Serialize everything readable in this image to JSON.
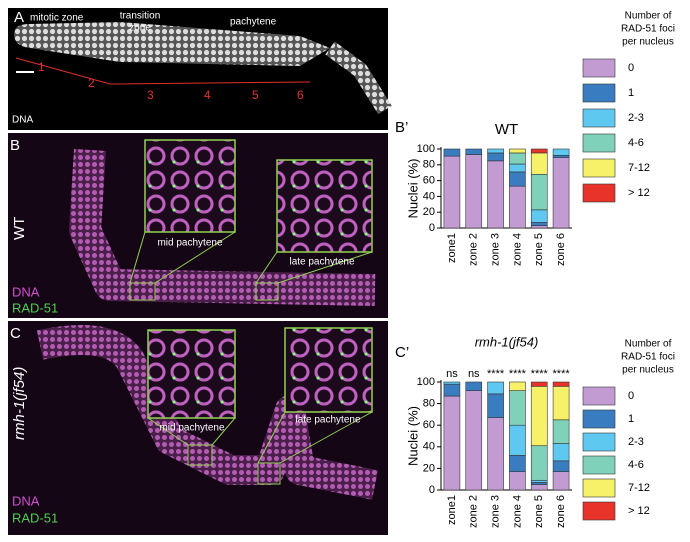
{
  "figure": {
    "panel_a": {
      "label": "A",
      "zones": [
        "mitotic zone",
        "transition",
        "zone",
        "pachytene"
      ],
      "stain": "DNA",
      "numbers": [
        "1",
        "2",
        "3",
        "4",
        "5",
        "6"
      ]
    },
    "panel_b": {
      "label": "B",
      "genotype": "WT",
      "stain1": "DNA",
      "stain2": "RAD-51",
      "inset1": "mid pachytene",
      "inset2": "late pachytene"
    },
    "panel_c": {
      "label": "C",
      "genotype": "rmh-1(jf54)",
      "stain1": "DNA",
      "stain2": "RAD-51",
      "inset1": "mid pachytene",
      "inset2": "late pachytene"
    }
  },
  "chart_data": [
    {
      "type": "bar",
      "stacked": true,
      "panel_label": "B’",
      "title": "WT",
      "y_label": "Nuclei (%)",
      "categories": [
        "zone1",
        "zone 2",
        "zone 3",
        "zone 4",
        "zone 5",
        "zone 6"
      ],
      "ylim": [
        0,
        100
      ],
      "yticks": [
        0,
        20,
        40,
        60,
        80,
        100
      ],
      "legend_title": [
        "Number of",
        "RAD-51 foci",
        "per nucleus"
      ],
      "series": [
        {
          "name": "0",
          "color": "#c39bd3",
          "values": [
            91,
            93,
            85,
            53,
            3,
            89
          ]
        },
        {
          "name": "1",
          "color": "#3a7cc0",
          "values": [
            9,
            7,
            10,
            18,
            4,
            3
          ]
        },
        {
          "name": "2-3",
          "color": "#5ec8f0",
          "values": [
            0,
            0,
            5,
            10,
            16,
            8
          ]
        },
        {
          "name": "4-6",
          "color": "#7fd1b9",
          "values": [
            0,
            0,
            0,
            14,
            45,
            0
          ]
        },
        {
          "name": "7-12",
          "color": "#f7f16a",
          "values": [
            0,
            0,
            0,
            5,
            27,
            0
          ]
        },
        {
          "name": "> 12",
          "color": "#e8332a",
          "values": [
            0,
            0,
            0,
            0,
            5,
            0
          ]
        }
      ]
    },
    {
      "type": "bar",
      "stacked": true,
      "panel_label": "C’",
      "title": "rmh-1(jf54)",
      "y_label": "Nuclei (%)",
      "categories": [
        "zone1",
        "zone 2",
        "zone 3",
        "zone 4",
        "zone 5",
        "zone 6"
      ],
      "annotations": [
        "ns",
        "ns",
        "****",
        "****",
        "****",
        "****"
      ],
      "ylim": [
        0,
        100
      ],
      "yticks": [
        0,
        20,
        40,
        60,
        80,
        100
      ],
      "legend_title": [
        "Number of",
        "RAD-51 foci",
        "per nucleus"
      ],
      "series": [
        {
          "name": "0",
          "color": "#c39bd3",
          "values": [
            87,
            92,
            67,
            17,
            5,
            17
          ]
        },
        {
          "name": "1",
          "color": "#3a7cc0",
          "values": [
            11,
            8,
            22,
            15,
            2,
            10
          ]
        },
        {
          "name": "2-3",
          "color": "#5ec8f0",
          "values": [
            2,
            0,
            11,
            28,
            2,
            16
          ]
        },
        {
          "name": "4-6",
          "color": "#7fd1b9",
          "values": [
            0,
            0,
            0,
            32,
            32,
            22
          ]
        },
        {
          "name": "7-12",
          "color": "#f7f16a",
          "values": [
            0,
            0,
            0,
            8,
            55,
            31
          ]
        },
        {
          "name": "> 12",
          "color": "#e8332a",
          "values": [
            0,
            0,
            0,
            0,
            4,
            4
          ]
        }
      ]
    }
  ]
}
